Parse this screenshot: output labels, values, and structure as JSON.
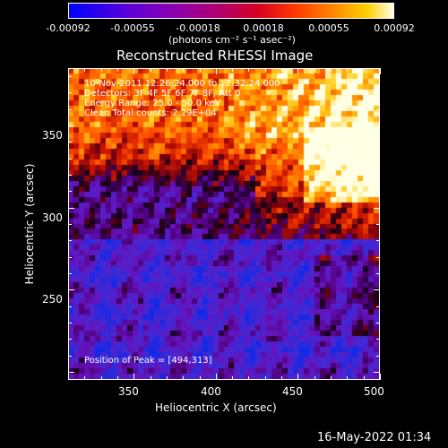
{
  "colorbar": {
    "ticks": [
      "-0.00092",
      "-0.00055",
      "-0.00018",
      "0.00018",
      "0.00055",
      "0.00092"
    ],
    "units": "(photons cm⁻² s⁻¹ asec⁻²)"
  },
  "title": "Reconstructed RHESSI Image",
  "info": {
    "line1": "10-Nov-2011 12:26:24.000 to 12:32:24.000",
    "line2": "Detectors: 3F 4F 5F 6F 7F 8F, Att 0",
    "line3": "Energy Range: 25.0 - 50.0 keV",
    "line4": "Clean     Total counts: 2.29E+04",
    "peak": "Position of Peak = [494,313]"
  },
  "axes": {
    "xlabel": "Heliocentric X (arcsec)",
    "ylabel": "Heliocentric Y (arcsec)",
    "xticks": [
      "350",
      "400",
      "450",
      "500"
    ],
    "yticks": [
      "350",
      "300",
      "250"
    ],
    "xrange": [
      310,
      500
    ],
    "yrange": [
      195,
      385
    ]
  },
  "footer": "16-May-2022 01:34",
  "colors": {
    "background": "#000000",
    "text": "#ffffff"
  }
}
